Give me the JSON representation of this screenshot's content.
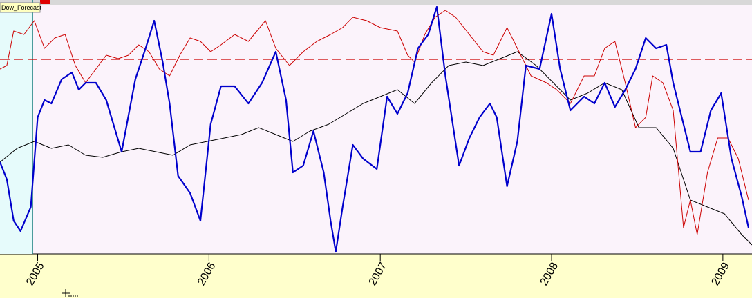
{
  "chart_data": {
    "type": "line",
    "marker_label": "Dow_Forecast",
    "marker_x": 2004.97,
    "reference_value": 282,
    "reference_color": "#cc0000",
    "xlim": [
      2004.78,
      2009.17
    ],
    "ylim": [
      0,
      360
    ],
    "xticks": [
      2005,
      2006,
      2007,
      2008,
      2009
    ],
    "series": [
      {
        "color": "#000000",
        "width": 1,
        "x": [
          2004.78,
          2004.88,
          2004.98,
          2005.08,
          2005.18,
          2005.28,
          2005.38,
          2005.49,
          2005.59,
          2005.69,
          2005.79,
          2005.89,
          2005.99,
          2006.09,
          2006.19,
          2006.29,
          2006.39,
          2006.49,
          2006.59,
          2006.7,
          2006.8,
          2006.9,
          2007.0,
          2007.1,
          2007.2,
          2007.3,
          2007.4,
          2007.5,
          2007.6,
          2007.7,
          2007.8,
          2007.91,
          2008.01,
          2008.11,
          2008.21,
          2008.31,
          2008.41,
          2008.51,
          2008.61,
          2008.71,
          2008.81,
          2008.91,
          2009.01,
          2009.11,
          2009.17
        ],
        "values": [
          133,
          153,
          163,
          153,
          158,
          143,
          140,
          148,
          153,
          148,
          143,
          158,
          163,
          168,
          173,
          183,
          173,
          163,
          178,
          188,
          203,
          218,
          228,
          238,
          218,
          248,
          273,
          278,
          273,
          283,
          293,
          273,
          248,
          223,
          233,
          248,
          238,
          183,
          183,
          153,
          78,
          68,
          58,
          28,
          13
        ]
      },
      {
        "color": "#cc0000",
        "width": 1,
        "x": [
          2004.78,
          2004.82,
          2004.86,
          2004.92,
          2004.98,
          2005.04,
          2005.1,
          2005.16,
          2005.22,
          2005.28,
          2005.34,
          2005.4,
          2005.47,
          2005.53,
          2005.59,
          2005.65,
          2005.71,
          2005.77,
          2005.83,
          2005.89,
          2005.95,
          2006.01,
          2006.07,
          2006.15,
          2006.23,
          2006.33,
          2006.39,
          2006.47,
          2006.55,
          2006.63,
          2006.71,
          2006.78,
          2006.84,
          2006.92,
          2007.0,
          2007.1,
          2007.16,
          2007.2,
          2007.26,
          2007.32,
          2007.38,
          2007.44,
          2007.52,
          2007.6,
          2007.66,
          2007.74,
          2007.8,
          2007.88,
          2007.97,
          2008.03,
          2008.11,
          2008.19,
          2008.25,
          2008.31,
          2008.37,
          2008.43,
          2008.49,
          2008.55,
          2008.59,
          2008.65,
          2008.71,
          2008.77,
          2008.81,
          2008.85,
          2008.91,
          2008.97,
          2009.03,
          2009.09,
          2009.15
        ],
        "values": [
          268,
          273,
          323,
          318,
          338,
          298,
          313,
          318,
          273,
          248,
          268,
          288,
          283,
          288,
          303,
          293,
          268,
          258,
          288,
          313,
          308,
          293,
          303,
          318,
          308,
          338,
          298,
          273,
          293,
          308,
          318,
          328,
          343,
          338,
          328,
          323,
          288,
          278,
          318,
          343,
          353,
          343,
          318,
          293,
          288,
          328,
          298,
          258,
          248,
          238,
          218,
          258,
          258,
          298,
          308,
          248,
          183,
          198,
          258,
          248,
          208,
          38,
          78,
          28,
          118,
          168,
          168,
          138,
          78
        ]
      },
      {
        "color": "#0000cc",
        "width": 2.2,
        "x": [
          2004.78,
          2004.82,
          2004.86,
          2004.9,
          2004.96,
          2005.0,
          2005.04,
          2005.08,
          2005.14,
          2005.2,
          2005.24,
          2005.28,
          2005.34,
          2005.4,
          2005.49,
          2005.57,
          2005.63,
          2005.68,
          2005.73,
          2005.77,
          2005.82,
          2005.89,
          2005.95,
          2006.01,
          2006.07,
          2006.15,
          2006.23,
          2006.31,
          2006.39,
          2006.45,
          2006.49,
          2006.55,
          2006.61,
          2006.67,
          2006.71,
          2006.74,
          2006.78,
          2006.84,
          2006.9,
          2006.98,
          2007.04,
          2007.1,
          2007.16,
          2007.22,
          2007.28,
          2007.33,
          2007.38,
          2007.46,
          2007.52,
          2007.58,
          2007.64,
          2007.68,
          2007.74,
          2007.8,
          2007.85,
          2007.93,
          2008.0,
          2008.05,
          2008.11,
          2008.19,
          2008.25,
          2008.31,
          2008.37,
          2008.43,
          2008.49,
          2008.55,
          2008.61,
          2008.67,
          2008.71,
          2008.77,
          2008.81,
          2008.87,
          2008.93,
          2008.99,
          2009.05,
          2009.11,
          2009.15
        ],
        "values": [
          133,
          108,
          48,
          33,
          68,
          198,
          223,
          218,
          253,
          263,
          238,
          248,
          248,
          223,
          148,
          253,
          298,
          338,
          278,
          218,
          113,
          88,
          48,
          188,
          243,
          243,
          218,
          248,
          293,
          223,
          118,
          128,
          178,
          118,
          48,
          3,
          68,
          158,
          138,
          123,
          228,
          203,
          233,
          298,
          318,
          358,
          258,
          128,
          168,
          198,
          218,
          198,
          98,
          163,
          273,
          268,
          348,
          268,
          208,
          228,
          218,
          248,
          213,
          238,
          268,
          313,
          298,
          303,
          248,
          188,
          148,
          148,
          208,
          233,
          138,
          83,
          38
        ]
      }
    ]
  }
}
